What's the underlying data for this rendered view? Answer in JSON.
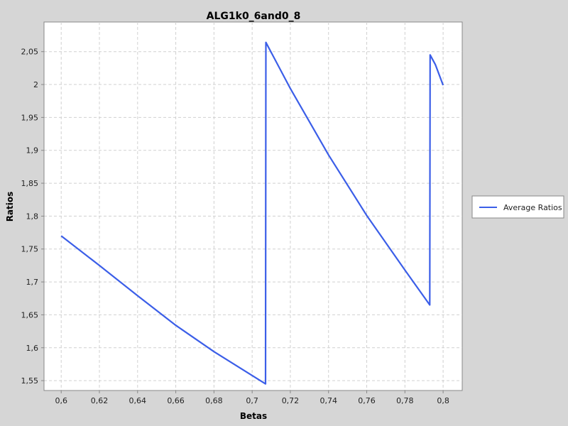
{
  "chart_data": {
    "type": "line",
    "title": "ALG1k0_6and0_8",
    "xlabel": "Betas",
    "ylabel": "Ratios",
    "xlim": [
      0.591,
      0.81
    ],
    "ylim": [
      1.535,
      2.095
    ],
    "grid": true,
    "legend_position": "right",
    "x_ticks": [
      0.6,
      0.62,
      0.64,
      0.66,
      0.68,
      0.7,
      0.72,
      0.74,
      0.76,
      0.78,
      0.8
    ],
    "x_tick_labels": [
      "0,6",
      "0,62",
      "0,64",
      "0,66",
      "0,68",
      "0,7",
      "0,72",
      "0,74",
      "0,76",
      "0,78",
      "0,8"
    ],
    "y_ticks": [
      1.55,
      1.6,
      1.65,
      1.7,
      1.75,
      1.8,
      1.85,
      1.9,
      1.95,
      2.0,
      2.05
    ],
    "y_tick_labels": [
      "1,55",
      "1,6",
      "1,65",
      "1,7",
      "1,75",
      "1,8",
      "1,85",
      "1,9",
      "1,95",
      "2",
      "2,05"
    ],
    "series": [
      {
        "name": "Average Ratios",
        "color": "#3b5ee8",
        "x": [
          0.6,
          0.62,
          0.64,
          0.66,
          0.68,
          0.707,
          0.7072,
          0.72,
          0.74,
          0.76,
          0.78,
          0.793,
          0.7932,
          0.796,
          0.8
        ],
        "y": [
          1.77,
          1.725,
          1.679,
          1.634,
          1.594,
          1.545,
          2.064,
          1.994,
          1.893,
          1.801,
          1.718,
          1.665,
          2.045,
          2.03,
          1.999
        ]
      }
    ]
  }
}
